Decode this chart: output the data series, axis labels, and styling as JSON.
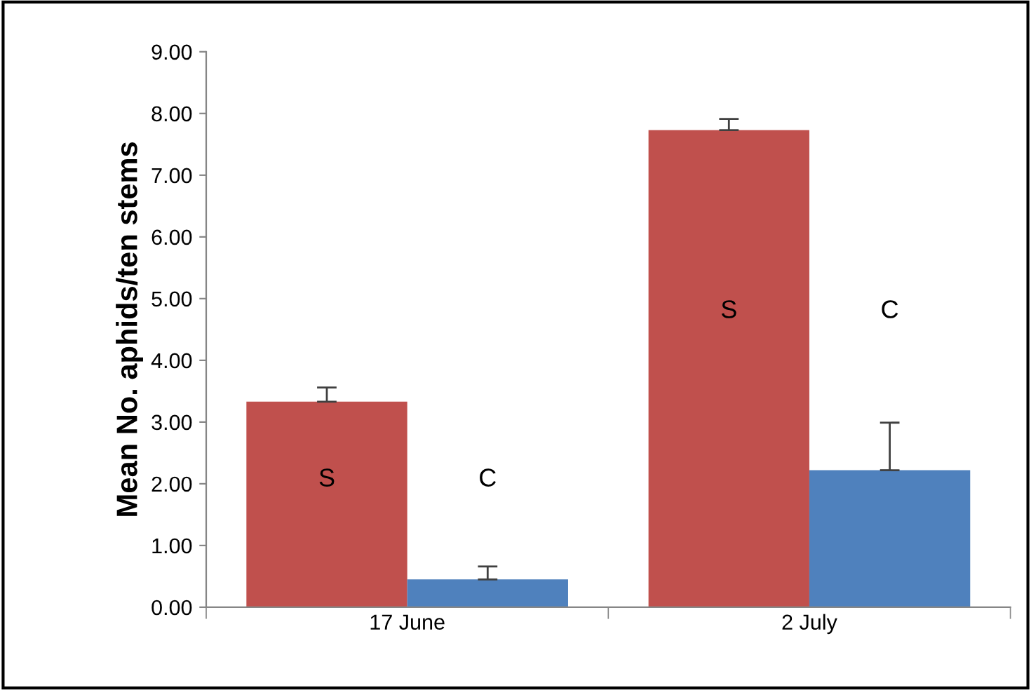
{
  "chart_data": {
    "type": "bar",
    "ylabel": "Mean No. aphids/ten stems",
    "categories": [
      "17 June",
      "2 July"
    ],
    "series": [
      {
        "name": "S",
        "color": "#c0504d",
        "values": [
          3.33,
          7.73
        ],
        "errors": [
          0.23,
          0.18
        ]
      },
      {
        "name": "C",
        "color": "#4f81bd",
        "values": [
          0.45,
          2.22
        ],
        "errors": [
          0.21,
          0.77
        ]
      }
    ],
    "ylim": [
      0,
      9
    ],
    "yticks": [
      {
        "value": 0,
        "label": "0.00"
      },
      {
        "value": 1,
        "label": "1.00"
      },
      {
        "value": 2,
        "label": "2.00"
      },
      {
        "value": 3,
        "label": "3.00"
      },
      {
        "value": 4,
        "label": "4.00"
      },
      {
        "value": 5,
        "label": "5.00"
      },
      {
        "value": 6,
        "label": "6.00"
      },
      {
        "value": 7,
        "label": "7.00"
      },
      {
        "value": 8,
        "label": "8.00"
      },
      {
        "value": 9,
        "label": "9.00"
      }
    ],
    "grid": false,
    "legend": false
  }
}
